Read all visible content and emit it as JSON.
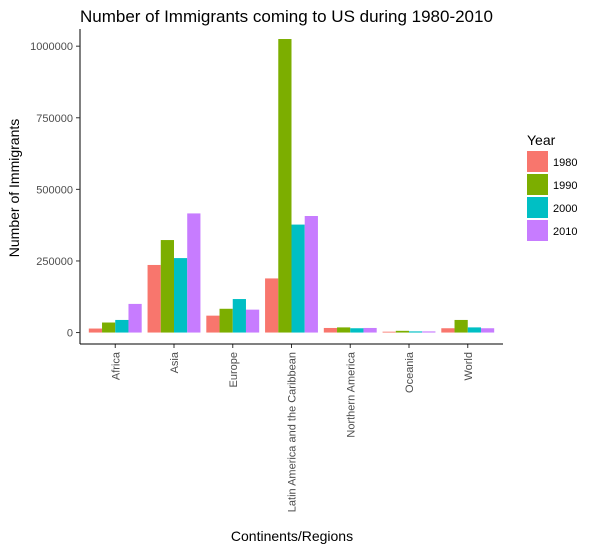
{
  "chart_data": {
    "type": "bar",
    "title": "Number of Immigrants coming to US during 1980-2010",
    "xlabel": "Continents/Regions",
    "ylabel": "Number of Immigrants",
    "categories": [
      "Africa",
      "Asia",
      "Europe",
      "Latin America and the Caribbean",
      "Northern America",
      "Oceania",
      "World"
    ],
    "legend_title": "Year",
    "legend_position": "right",
    "grid": false,
    "ylim": [
      -40000,
      1060000
    ],
    "yticks": [
      0,
      250000,
      500000,
      750000,
      1000000
    ],
    "ytick_labels": [
      "0",
      "250000",
      "500000",
      "750000",
      "1000000"
    ],
    "series": [
      {
        "name": "1980",
        "color": "#F8766D",
        "values": [
          14000,
          236000,
          59000,
          189000,
          16000,
          3000,
          15000
        ]
      },
      {
        "name": "1990",
        "color": "#7CAE00",
        "values": [
          35000,
          323000,
          83000,
          1025000,
          18000,
          6000,
          44000
        ]
      },
      {
        "name": "2000",
        "color": "#00BFC4",
        "values": [
          44000,
          260000,
          117000,
          377000,
          15000,
          4000,
          18000
        ]
      },
      {
        "name": "2010",
        "color": "#C77CFF",
        "values": [
          100000,
          416000,
          80000,
          407000,
          16000,
          4000,
          15000
        ]
      }
    ]
  }
}
